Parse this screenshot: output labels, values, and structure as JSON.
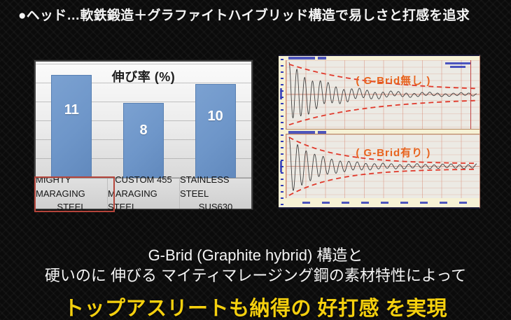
{
  "header": {
    "text": "●ヘッド…軟鉄鍛造＋グラファイトハイブリッド構造で易しさと打感を追求"
  },
  "footer": {
    "line1": "G-Brid (Graphite hybrid) 構造と",
    "line2": "硬いのに 伸びる マイティマレージング鋼の素材特性によって",
    "highlight": "トップアスリートも納得の 好打感 を実現"
  },
  "colors": {
    "bar_fill": "#6e96c9",
    "bar_border": "#577fb2",
    "highlight_box": "#b5453b",
    "envelope_dashed": "#e0392b",
    "waveform_line": "#3f3f3f",
    "graph_label_orange": "#e8641e",
    "accent_yellow": "#f5d00e"
  },
  "chart_data": [
    {
      "type": "bar",
      "title": "伸び率 (%)",
      "categories": [
        "MIGHTY MARAGING STEEL",
        "CUSTOM 455 MARAGING STEEL",
        "STAINLESS STEEL SUS630"
      ],
      "category_lines": [
        [
          "MIGHTY MARAGING",
          "STEEL"
        ],
        [
          "CUSTOM 455",
          "MARAGING STEEL"
        ],
        [
          "STAINLESS STEEL",
          "SUS630"
        ]
      ],
      "values": [
        11,
        8,
        10
      ],
      "xlabel": "",
      "ylabel": "",
      "ylim": [
        0,
        12.4
      ],
      "grid": true,
      "grid_step": 2,
      "value_labels": true,
      "highlighted_index": 0
    },
    {
      "type": "line",
      "title": "",
      "panels": [
        {
          "label": "( G-Brid無し )",
          "envelope": {
            "a": 0.82,
            "k": 2.3,
            "c": 0.1
          },
          "wave": {
            "a": 0.86,
            "k": 5.5,
            "c": 0.035,
            "freq": 24,
            "phase": 1.57
          },
          "wobble": {
            "a": 0.1,
            "k": 1.8,
            "freq": 5.5
          },
          "cursor_x": 0.955
        },
        {
          "label": "( G-Brid有り )",
          "envelope": {
            "a": 0.87,
            "k": 3.9,
            "c": 0.08
          },
          "wave": {
            "a": 0.88,
            "k": 7,
            "c": 0.06,
            "freq": 22,
            "phase": 1.57
          },
          "wobble": {
            "a": 0.02,
            "k": 0,
            "freq": 6
          }
        }
      ],
      "legend_position": "none",
      "grid": true
    }
  ]
}
